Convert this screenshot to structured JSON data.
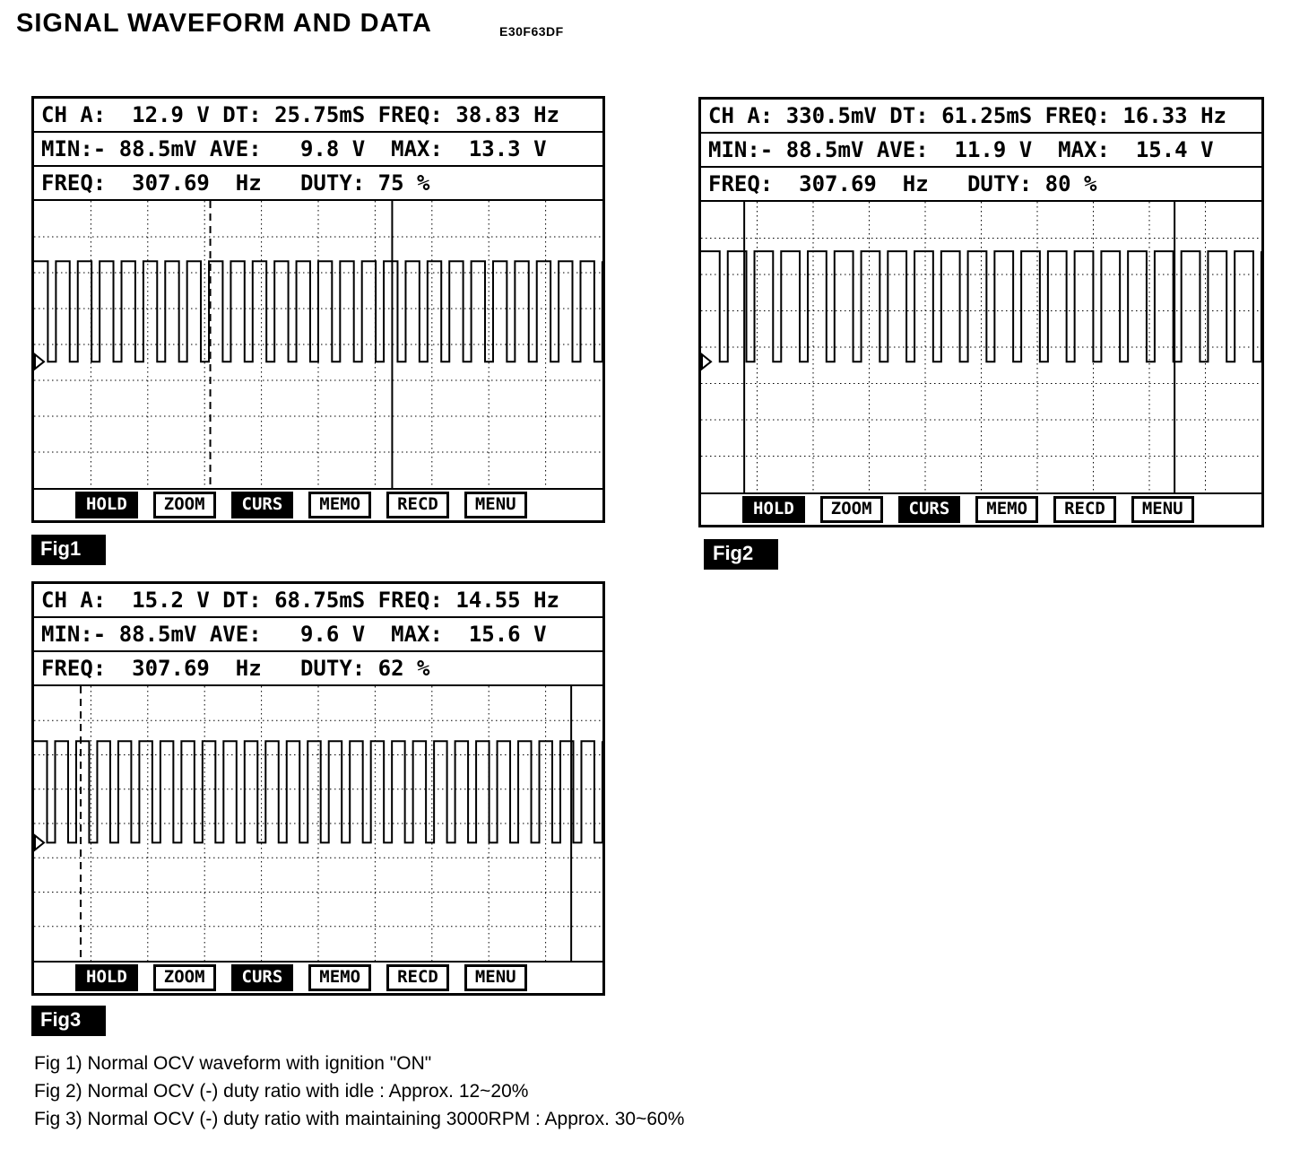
{
  "page": {
    "title": "SIGNAL WAVEFORM AND DATA",
    "doc_code": "E30F63DF",
    "captions": [
      "Fig 1) Normal OCV waveform with ignition \"ON\"",
      "Fig 2) Normal OCV (-) duty ratio with idle : Approx. 12~20%",
      "Fig 3) Normal OCV (-) duty ratio with maintaining 3000RPM : Approx. 30~60%"
    ]
  },
  "scopes": [
    {
      "label": "Fig1",
      "readings": {
        "line1": "CH A:  12.9 V DT: 25.75mS FREQ: 38.83 Hz",
        "line2": "MIN:- 88.5mV AVE:   9.8 V  MAX:  13.3 V",
        "line3": "FREQ:  307.69  Hz   DUTY: 75 %"
      },
      "buttons": [
        {
          "label": "HOLD",
          "active": true
        },
        {
          "label": "ZOOM",
          "active": false
        },
        {
          "label": "CURS",
          "active": true
        },
        {
          "label": "MEMO",
          "active": false
        },
        {
          "label": "RECD",
          "active": false
        },
        {
          "label": "MENU",
          "active": false
        }
      ],
      "waveform": {
        "type": "pwm-square",
        "pulses": 26,
        "duty_pct": 75,
        "high_y": 0.21,
        "low_y": 0.56
      },
      "cursors": [
        {
          "x": 0.31,
          "style": "dashed"
        },
        {
          "x": 0.63,
          "style": "solid"
        }
      ],
      "grid": {
        "cols": 10,
        "rows": 8
      }
    },
    {
      "label": "Fig2",
      "readings": {
        "line1": "CH A: 330.5mV DT: 61.25mS FREQ: 16.33 Hz",
        "line2": "MIN:- 88.5mV AVE:  11.9 V  MAX:  15.4 V",
        "line3": "FREQ:  307.69  Hz   DUTY: 80 %"
      },
      "buttons": [
        {
          "label": "HOLD",
          "active": true
        },
        {
          "label": "ZOOM",
          "active": false
        },
        {
          "label": "CURS",
          "active": true
        },
        {
          "label": "MEMO",
          "active": false
        },
        {
          "label": "RECD",
          "active": false
        },
        {
          "label": "MENU",
          "active": false
        }
      ],
      "waveform": {
        "type": "pwm-square",
        "pulses": 21,
        "duty_pct": 80,
        "high_y": 0.17,
        "low_y": 0.55
      },
      "cursors": [
        {
          "x": 0.077,
          "style": "solid"
        },
        {
          "x": 0.845,
          "style": "solid"
        }
      ],
      "grid": {
        "cols": 10,
        "rows": 8
      }
    },
    {
      "label": "Fig3",
      "readings": {
        "line1": "CH A:  15.2 V DT: 68.75mS FREQ: 14.55 Hz",
        "line2": "MIN:- 88.5mV AVE:   9.6 V  MAX:  15.6 V",
        "line3": "FREQ:  307.69  Hz   DUTY: 62 %"
      },
      "buttons": [
        {
          "label": "HOLD",
          "active": true
        },
        {
          "label": "ZOOM",
          "active": false
        },
        {
          "label": "CURS",
          "active": true
        },
        {
          "label": "MEMO",
          "active": false
        },
        {
          "label": "RECD",
          "active": false
        },
        {
          "label": "MENU",
          "active": false
        }
      ],
      "waveform": {
        "type": "pwm-square",
        "pulses": 27,
        "duty_pct": 62,
        "high_y": 0.2,
        "low_y": 0.57
      },
      "cursors": [
        {
          "x": 0.082,
          "style": "dashed"
        },
        {
          "x": 0.945,
          "style": "solid"
        }
      ],
      "grid": {
        "cols": 10,
        "rows": 8
      }
    }
  ]
}
